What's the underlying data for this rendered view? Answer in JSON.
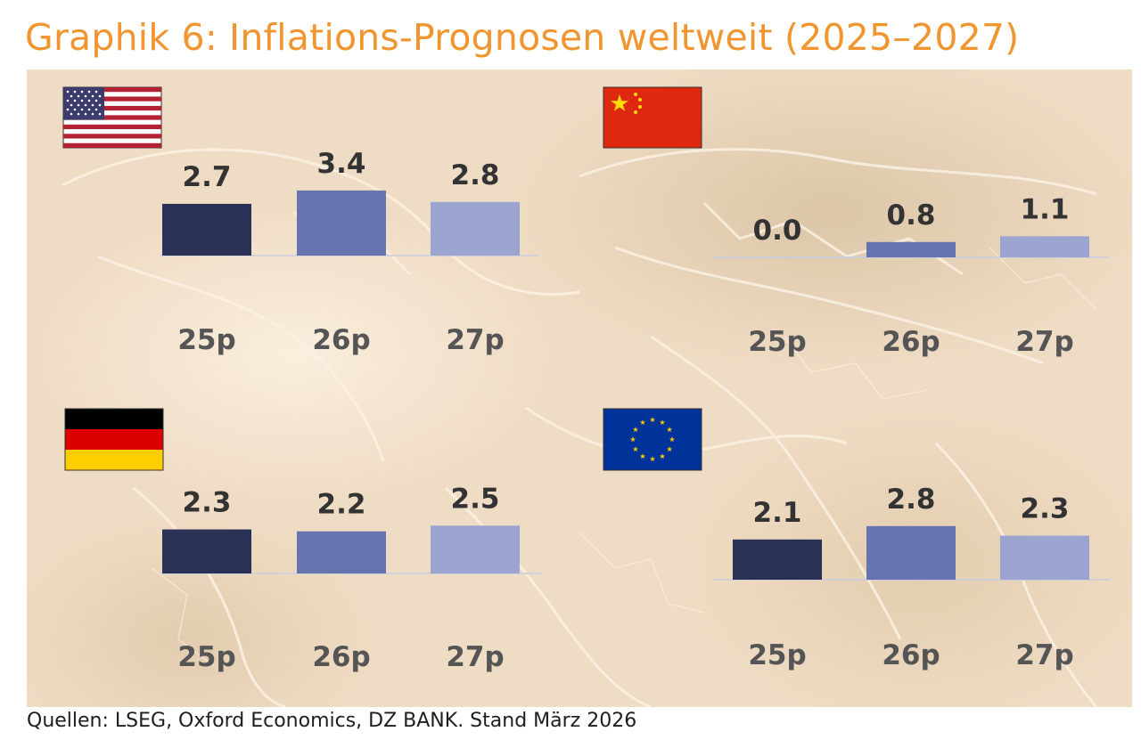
{
  "title": "Graphik 6: Inflations-Prognosen weltweit (2025–2027)",
  "source": "Quellen: LSEG, Oxford Economics, DZ BANK. Stand März 2026",
  "colors": {
    "title": "#f0952f",
    "bar_25p": "#293254",
    "bar_26p": "#6674b0",
    "bar_27p": "#9ba5d0",
    "value_label": "#333333",
    "category_label": "#555555",
    "baseline": "#c8cce0"
  },
  "chart_data": [
    {
      "type": "bar",
      "flag_icon": "usa-flag-icon",
      "categories": [
        "25p",
        "26p",
        "27p"
      ],
      "values": [
        2.7,
        3.4,
        2.8
      ],
      "value_labels": [
        "2.7",
        "3.4",
        "2.8"
      ]
    },
    {
      "type": "bar",
      "flag_icon": "china-flag-icon",
      "categories": [
        "25p",
        "26p",
        "27p"
      ],
      "values": [
        0.0,
        0.8,
        1.1
      ],
      "value_labels": [
        "0.0",
        "0.8",
        "1.1"
      ]
    },
    {
      "type": "bar",
      "flag_icon": "germany-flag-icon",
      "categories": [
        "25p",
        "26p",
        "27p"
      ],
      "values": [
        2.3,
        2.2,
        2.5
      ],
      "value_labels": [
        "2.3",
        "2.2",
        "2.5"
      ]
    },
    {
      "type": "bar",
      "flag_icon": "eu-flag-icon",
      "categories": [
        "25p",
        "26p",
        "27p"
      ],
      "values": [
        2.1,
        2.8,
        2.3
      ],
      "value_labels": [
        "2.1",
        "2.8",
        "2.3"
      ]
    }
  ]
}
